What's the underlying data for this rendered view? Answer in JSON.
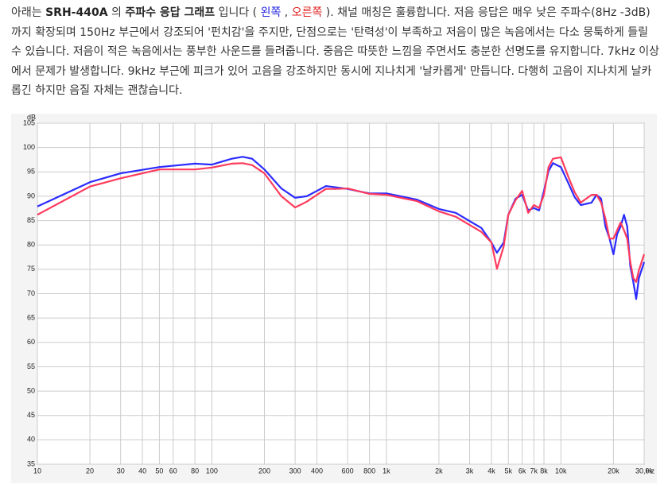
{
  "paragraph": {
    "segments": [
      "아래는 ",
      "SRH-440A",
      " 의 ",
      "주파수 응답 그래프",
      " 입니다 ( ",
      "왼쪽",
      " , ",
      "오른쪽",
      " ). 채널 매칭은 훌륭합니다. 저음 응답은 매우 낮은 주파수(8Hz -3dB)까지 확장되며 150Hz 부근에서 강조되어 '펀치감'을 주지만, 단점으로는 '탄력성'이 부족하고 저음이 많은 녹음에서는 다소 뭉툭하게 들릴 수 있습니다. 저음이 적은 녹음에서는 풍부한 사운드를 들려줍니다. 중음은 따뜻한 느낌을 주면서도 충분한 선명도를 유지합니다. 7kHz 이상에서 문제가 발생합니다. 9kHz 부근에 피크가 있어 고음을 강조하지만 동시에 지나치게 '날카롭게' 만듭니다. 다행히 고음이 지나치게 날카롭긴 하지만 음질 자체는 괜찮습니다."
    ]
  },
  "chart_data": {
    "type": "line",
    "y_label": "dB",
    "x_unit_label": "Hz",
    "xscale": "log",
    "grid": true,
    "xlim": [
      10,
      30000
    ],
    "ylim": [
      35,
      105
    ],
    "yticks": [
      35,
      40,
      45,
      50,
      55,
      60,
      65,
      70,
      75,
      80,
      85,
      90,
      95,
      100,
      105
    ],
    "xticks": [
      10,
      20,
      30,
      40,
      50,
      60,
      80,
      100,
      200,
      300,
      400,
      600,
      800,
      {
        "value": 1000,
        "label": "1k"
      },
      {
        "value": 2000,
        "label": "2k"
      },
      {
        "value": 3000,
        "label": "3k"
      },
      {
        "value": 4000,
        "label": "4k"
      },
      {
        "value": 5000,
        "label": "5k"
      },
      {
        "value": 6000,
        "label": "6k"
      },
      {
        "value": 7000,
        "label": "7k"
      },
      {
        "value": 8000,
        "label": "8k"
      },
      {
        "value": 10000,
        "label": "10k"
      },
      {
        "value": 20000,
        "label": "20k"
      },
      {
        "value": 30000,
        "label": "30,0k"
      }
    ],
    "x": [
      10,
      20,
      30,
      50,
      80,
      100,
      130,
      150,
      170,
      200,
      250,
      300,
      350,
      400,
      450,
      500,
      600,
      700,
      800,
      1000,
      1500,
      2000,
      2500,
      3000,
      3500,
      4000,
      4300,
      4700,
      5000,
      5500,
      6000,
      6500,
      7000,
      7500,
      8000,
      8500,
      9000,
      10000,
      11000,
      12000,
      13000,
      15000,
      16000,
      17000,
      18000,
      19000,
      20000,
      21000,
      22000,
      23000,
      24000,
      25000,
      26000,
      27000,
      28000,
      30000
    ],
    "series": [
      {
        "color": "#2b2bff",
        "values": [
          87.9,
          92.9,
          94.7,
          96.0,
          96.7,
          96.5,
          97.7,
          98.1,
          97.7,
          95.5,
          91.6,
          89.7,
          90.0,
          91.1,
          92.1,
          91.9,
          91.5,
          91.0,
          90.6,
          90.6,
          89.3,
          87.4,
          86.6,
          84.9,
          83.5,
          80.5,
          78.4,
          80.5,
          86.2,
          89.5,
          90.3,
          87.1,
          87.6,
          87.1,
          91.1,
          95.2,
          96.8,
          96.0,
          92.8,
          89.8,
          88.2,
          88.7,
          90.3,
          89.5,
          83.8,
          81.3,
          78.1,
          82.2,
          83.8,
          86.2,
          83.8,
          75.6,
          72.4,
          68.9,
          73.2,
          76.5
        ]
      },
      {
        "color": "#ff3a5c",
        "values": [
          86.2,
          92.0,
          93.7,
          95.5,
          95.5,
          95.9,
          96.7,
          96.8,
          96.4,
          94.7,
          90.0,
          87.7,
          88.9,
          90.3,
          91.5,
          91.5,
          91.6,
          91.0,
          90.5,
          90.3,
          89.0,
          86.9,
          85.8,
          84.1,
          82.7,
          80.5,
          75.1,
          79.7,
          86.2,
          89.2,
          91.1,
          86.6,
          88.2,
          87.6,
          90.3,
          96.0,
          97.7,
          98.0,
          94.1,
          90.8,
          88.7,
          90.3,
          90.3,
          88.7,
          85.4,
          81.3,
          81.3,
          83.0,
          84.6,
          83.0,
          81.3,
          76.5,
          73.2,
          72.4,
          74.8,
          78.1
        ]
      }
    ]
  }
}
